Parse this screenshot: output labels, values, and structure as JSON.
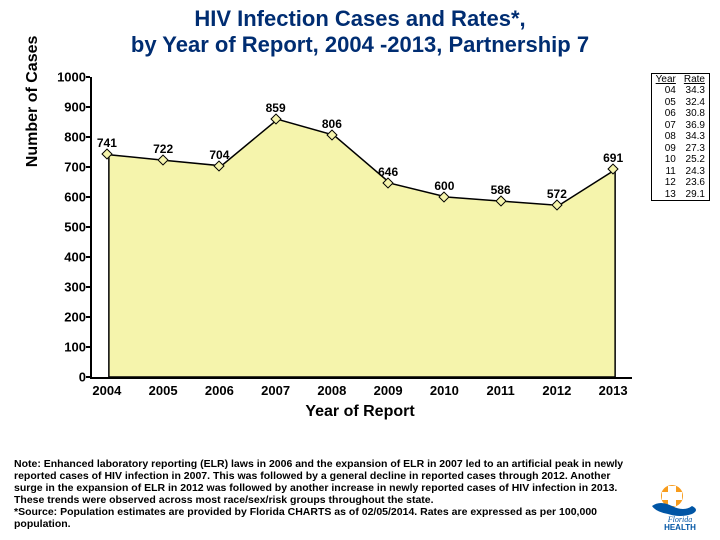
{
  "title_line1": "HIV Infection Cases and Rates*,",
  "title_line2": "by Year of Report, 2004 -2013, Partnership 7",
  "chart": {
    "type": "area",
    "ylabel": "Number of Cases",
    "xlabel": "Year of Report",
    "ylim": [
      0,
      1000
    ],
    "ytick_step": 100,
    "categories": [
      "2004",
      "2005",
      "2006",
      "2007",
      "2008",
      "2009",
      "2010",
      "2011",
      "2012",
      "2013"
    ],
    "values": [
      741,
      722,
      704,
      859,
      806,
      646,
      600,
      586,
      572,
      691
    ],
    "area_fill": "#f5f4ac",
    "line_color": "#000000",
    "marker_style": "diamond",
    "background_color": "#ffffff",
    "title_color": "#002d72",
    "tick_fontsize": 13,
    "label_fontsize": 16,
    "datalabel_fontsize": 12
  },
  "rate_table": {
    "columns": [
      "Year",
      "Rate"
    ],
    "rows": [
      [
        "04",
        "34.3"
      ],
      [
        "05",
        "32.4"
      ],
      [
        "06",
        "30.8"
      ],
      [
        "07",
        "36.9"
      ],
      [
        "08",
        "34.3"
      ],
      [
        "09",
        "27.3"
      ],
      [
        "10",
        "25.2"
      ],
      [
        "11",
        "24.3"
      ],
      [
        "12",
        "23.6"
      ],
      [
        "13",
        "29.1"
      ]
    ]
  },
  "note_text": "Note:  Enhanced laboratory reporting (ELR) laws in 2006 and the expansion of ELR in 2007 led to an artificial peak in newly reported cases of HIV infection in 2007.  This was followed by a general decline in reported cases through 2012.  Another surge in the expansion of ELR in 2012 was followed by another increase in newly reported cases of  HIV infection in 2013.  These trends were observed across most race/sex/risk groups throughout the state.\n*Source: Population estimates are provided by Florida CHARTS as of 02/05/2014. Rates are expressed as per 100,000 population.",
  "logo": {
    "text_top": "Florida",
    "text_bottom": "HEALTH",
    "primary_color": "#0055a5",
    "accent_color": "#f89c1c"
  }
}
